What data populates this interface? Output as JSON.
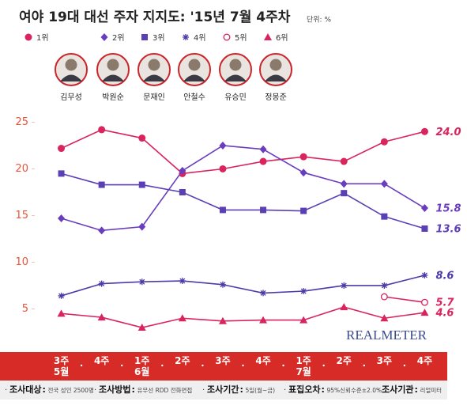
{
  "chart_data": {
    "type": "line",
    "title": "여야 19대 대선 주자 지지도: '15년 7월 4주차",
    "unit": "단위: %",
    "candidates": [
      "김무성",
      "박원순",
      "문재인",
      "안철수",
      "유승민",
      "정몽준"
    ],
    "categories": [
      "3주\n5월",
      "4주",
      "1주\n6월",
      "2주",
      "3주",
      "4주",
      "1주\n7월",
      "2주",
      "3주",
      "4주"
    ],
    "series": [
      {
        "name": "1위",
        "color": "#d9245e",
        "marker": "circle",
        "values": [
          22.2,
          24.2,
          23.3,
          19.5,
          20.0,
          20.8,
          21.3,
          20.8,
          22.9,
          24.0
        ],
        "value_labels": [
          null,
          null,
          null,
          null,
          null,
          null,
          null,
          null,
          null,
          "24.0"
        ]
      },
      {
        "name": "2위",
        "color": "#6a3dbe",
        "marker": "diamond",
        "values": [
          14.7,
          13.4,
          13.8,
          19.8,
          22.5,
          22.1,
          19.6,
          18.4,
          18.4,
          15.8
        ],
        "value_labels": [
          null,
          null,
          null,
          null,
          null,
          null,
          null,
          null,
          null,
          "15.8"
        ]
      },
      {
        "name": "3위",
        "color": "#5b3fb5",
        "marker": "square",
        "values": [
          19.5,
          18.3,
          18.3,
          17.5,
          15.6,
          15.6,
          15.5,
          17.4,
          14.9,
          13.6
        ],
        "value_labels": [
          null,
          null,
          null,
          null,
          null,
          null,
          null,
          null,
          null,
          "13.6"
        ]
      },
      {
        "name": "4위",
        "color": "#4d3aa8",
        "marker": "asterisk",
        "values": [
          6.4,
          7.7,
          7.9,
          8.0,
          7.6,
          6.7,
          6.9,
          7.5,
          7.5,
          8.6
        ],
        "value_labels": [
          null,
          null,
          null,
          null,
          null,
          null,
          null,
          null,
          null,
          "8.6"
        ]
      },
      {
        "name": "5위",
        "color": "#d9245e",
        "marker": "hollow",
        "values": [
          null,
          null,
          null,
          null,
          null,
          null,
          null,
          null,
          6.3,
          5.7
        ],
        "value_labels": [
          null,
          null,
          null,
          null,
          null,
          null,
          null,
          null,
          null,
          "5.7"
        ]
      },
      {
        "name": "6위",
        "color": "#d9245e",
        "marker": "triangle",
        "values": [
          4.5,
          4.1,
          3.0,
          4.0,
          3.7,
          3.8,
          3.8,
          5.2,
          4.0,
          4.6
        ],
        "value_labels": [
          null,
          null,
          null,
          null,
          null,
          null,
          null,
          null,
          null,
          "4.6"
        ]
      }
    ],
    "ylim": [
      0.8,
      27.5
    ],
    "yticks": [
      5,
      10,
      15,
      20,
      25
    ],
    "grid": false,
    "watermark": "REALMETER",
    "footer": [
      {
        "label": "조사대상",
        "text": "전국 성인 2500명"
      },
      {
        "label": "조사방법",
        "text": "유무선 RDD 전화면접"
      },
      {
        "label": "조사기간",
        "text": "5일(월~금)"
      },
      {
        "label": "표집오차",
        "text": "95%신뢰수준±2.0%"
      },
      {
        "label": "조사기관",
        "text": "리얼미터"
      }
    ]
  }
}
